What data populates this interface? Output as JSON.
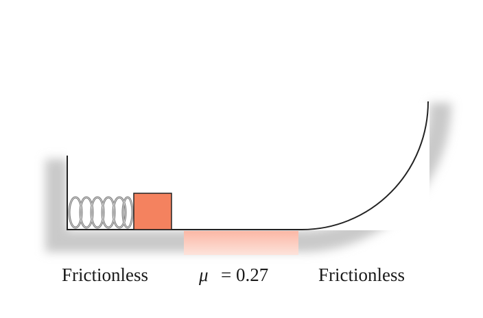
{
  "labels": {
    "left": "Frictionless",
    "mu_symbol": "μ",
    "mu_value": "= 0.27",
    "right": "Frictionless"
  }
}
